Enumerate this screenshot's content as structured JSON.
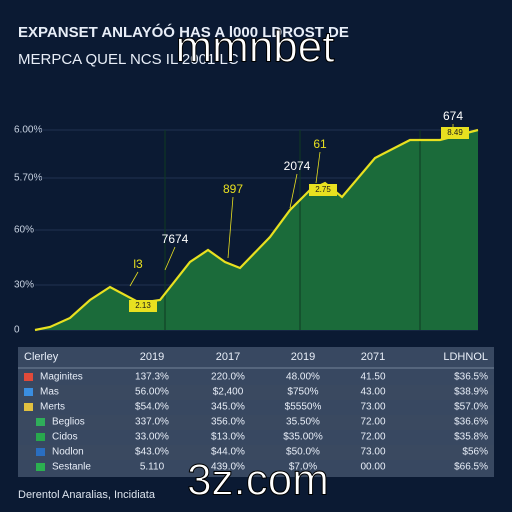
{
  "chart_data": {
    "type": "area",
    "title": "EXPANSET ANLAYÓÓ HAS A l000 LDROST DE",
    "subtitle": "MERPCA QUEL NCS IL 2001 LC",
    "x": [
      0,
      15,
      35,
      55,
      75,
      105,
      125,
      155,
      173,
      190,
      205,
      235,
      255,
      275,
      290,
      307,
      340,
      375,
      405,
      443
    ],
    "xlim": [
      0,
      443
    ],
    "values": [
      0,
      1.5,
      6,
      15,
      21.5,
      13.5,
      15,
      34,
      40,
      34,
      31,
      46.5,
      60,
      70,
      73.5,
      66.5,
      86,
      95,
      95,
      100
    ],
    "color": "#1b6b3a",
    "line_color": "#e8e020",
    "ylim": [
      0,
      100
    ],
    "yticks": [
      0,
      {
        "value": 22.5,
        "label": "30%"
      },
      {
        "value": 50,
        "label": "60%"
      },
      {
        "value": 76,
        "label": "5.70%"
      },
      {
        "value": 100,
        "label": "6.00%"
      }
    ],
    "grid": true,
    "annotations": [
      "l3",
      "7674",
      "897",
      "2074",
      "61",
      "674"
    ],
    "callouts": [
      "2.13",
      "2.75",
      "8.49"
    ]
  },
  "table": {
    "header": [
      "Clerley",
      "2019",
      "2017",
      "2019",
      "2071",
      "LDHNOL"
    ],
    "rows": [
      [
        "Maginites",
        "137.3%",
        "220.0%",
        "48.00%",
        "41.50",
        "$36.5%"
      ],
      [
        "Mas",
        "56.00%",
        "$2,400",
        "$750%",
        "43.00",
        "$38.9%"
      ],
      [
        "Merts",
        "$54.0%",
        "345.0%",
        "$5550%",
        "73.00",
        "$57.0%"
      ],
      [
        "Beglios",
        "337.0%",
        "356.0%",
        "35.50%",
        "72.00",
        "$36.6%"
      ],
      [
        "Cidos",
        "33.00%",
        "$13.0%",
        "$35.00%",
        "72.00",
        "$35.8%"
      ],
      [
        "Nodlon",
        "$43.0%",
        "$44.0%",
        "$50.0%",
        "73.00",
        "$56%"
      ],
      [
        "Sestanle",
        "5.110",
        "439.0%",
        "$7.0%",
        "00.00",
        "$66.5%"
      ]
    ]
  },
  "footer": "Derentol Anaralias, Incidiata",
  "watermark": {
    "top": "mmnbet",
    "bottom": "3z.com"
  }
}
